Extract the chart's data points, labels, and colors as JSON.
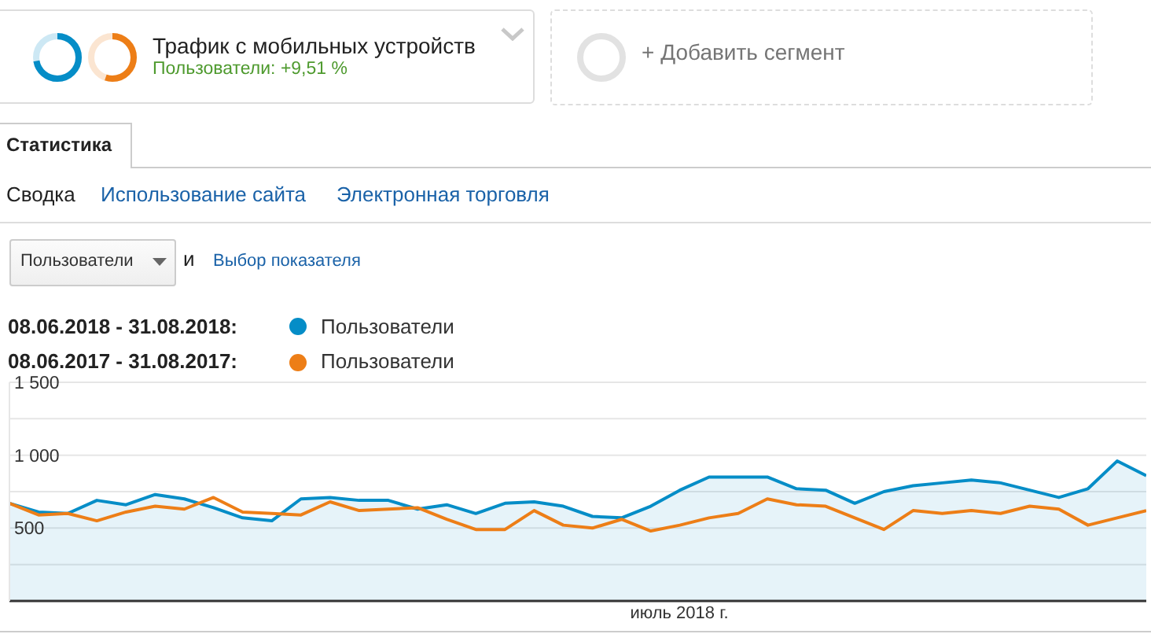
{
  "chart_data": {
    "type": "line",
    "annotations": [
      "Трафик с мобильных устройств",
      "Пользователи: +9,51 %",
      "+ Добавить сегмент",
      "Статистика",
      "Сводка",
      "Использование сайта",
      "Электронная торговля",
      "Пользователи",
      "и",
      "Выбор показателя",
      "08.06.2018 - 31.08.2018:",
      "08.06.2017 - 31.08.2017:",
      "июль 2018 г."
    ],
    "categories": [
      null,
      null,
      null,
      null,
      null,
      null,
      null,
      null,
      null,
      null,
      null,
      null,
      null,
      null,
      null,
      null,
      null,
      null,
      null,
      null,
      null,
      null,
      null,
      null,
      null,
      null,
      null,
      null,
      null,
      null,
      null,
      null,
      null,
      null,
      null,
      null,
      null,
      null,
      null,
      null
    ],
    "ylim": [
      0,
      1500
    ],
    "yticks": [
      {
        "value": 250,
        "label": null
      },
      500,
      {
        "value": 750,
        "label": null
      },
      {
        "value": 1000,
        "label": "1 000"
      },
      {
        "value": 1250,
        "label": null
      },
      {
        "value": 1500,
        "label": "1 500"
      }
    ],
    "grid": "y",
    "legend": "top left",
    "marker": "none",
    "line_style": "solid",
    "series": [
      {
        "name": "Пользователи",
        "type": "area",
        "color": "#058dc7",
        "values": [
          670,
          610,
          600,
          690,
          660,
          730,
          700,
          640,
          570,
          550,
          700,
          710,
          690,
          690,
          630,
          660,
          600,
          670,
          680,
          650,
          580,
          570,
          650,
          760,
          850,
          850,
          850,
          770,
          760,
          670,
          750,
          790,
          810,
          830,
          810,
          760,
          710,
          770,
          960,
          860
        ]
      },
      {
        "name": "Пользователи",
        "color": "#ed7e17",
        "values": [
          670,
          590,
          600,
          550,
          610,
          650,
          630,
          710,
          610,
          600,
          590,
          680,
          620,
          630,
          640,
          560,
          490,
          490,
          620,
          520,
          500,
          560,
          480,
          520,
          570,
          600,
          700,
          660,
          650,
          570,
          490,
          620,
          600,
          620,
          600,
          650,
          630,
          520,
          570,
          620
        ]
      }
    ]
  }
}
